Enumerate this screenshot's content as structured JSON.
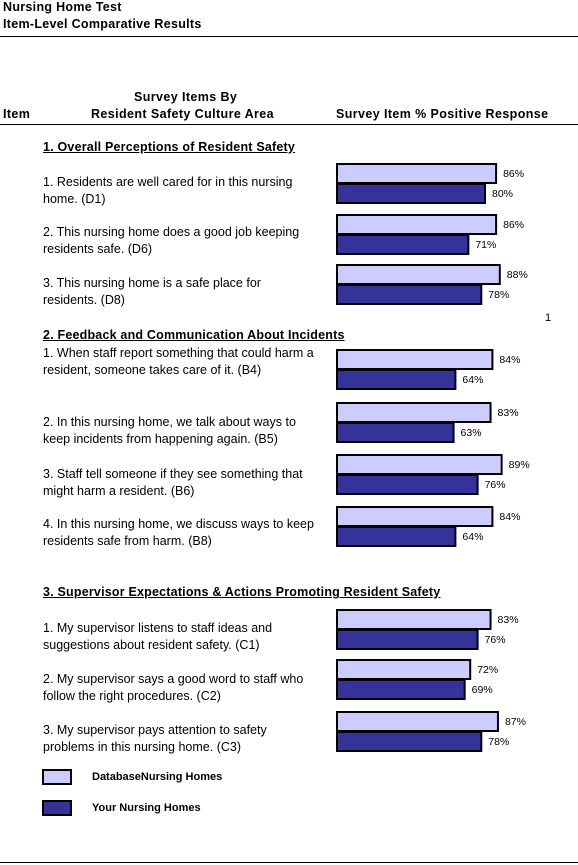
{
  "header": {
    "title": "Nursing Home Test",
    "subtitle": "Item-Level Comparative Results"
  },
  "columns": {
    "item": "Item",
    "area_line1": "Survey Items By",
    "area_line2": "Resident Safety Culture Area",
    "response": "Survey Item % Positive Response"
  },
  "page_number": "1",
  "legend": {
    "database": "DatabaseNursing Homes",
    "yours": "Your Nursing Homes"
  },
  "colors": {
    "database": "#ccccff",
    "yours": "#333399"
  },
  "sections": [
    {
      "title": "1.  Overall Perceptions of Resident Safety",
      "items": [
        {
          "text": "1. Residents are well cared for in this nursing home. (D1)",
          "database_label": "86%",
          "yours_label": "80%"
        },
        {
          "text": "2. This nursing home does a good job keeping residents safe. (D6)",
          "database_label": "86%",
          "yours_label": "71%"
        },
        {
          "text": "3. This nursing home is a safe place for residents. (D8)",
          "database_label": "88%",
          "yours_label": "78%"
        }
      ]
    },
    {
      "title": "2. Feedback and Communication About Incidents",
      "items": [
        {
          "text": "1. When staff report something that could harm a resident, someone takes care of it. (B4)",
          "database_label": "84%",
          "yours_label": "64%"
        },
        {
          "text": "2. In this nursing home, we talk about ways to keep incidents from happening again. (B5)",
          "database_label": "83%",
          "yours_label": "63%"
        },
        {
          "text": "3. Staff tell someone if they see something that might harm a resident. (B6)",
          "database_label": "89%",
          "yours_label": "76%"
        },
        {
          "text": "4. In this nursing home, we discuss ways to keep residents safe from harm. (B8)",
          "database_label": "84%",
          "yours_label": "64%"
        }
      ]
    },
    {
      "title": "3.  Supervisor Expectations & Actions Promoting Resident Safety",
      "items": [
        {
          "text": "1. My supervisor listens to staff ideas and suggestions about resident safety. (C1)",
          "database_label": "83%",
          "yours_label": "76%"
        },
        {
          "text": "2. My supervisor says a good word to staff who follow the right procedures. (C2)",
          "database_label": "72%",
          "yours_label": "69%"
        },
        {
          "text": "3. My supervisor pays attention to safety problems in this nursing home. (C3)",
          "database_label": "87%",
          "yours_label": "78%"
        }
      ]
    }
  ],
  "chart_data": {
    "type": "bar",
    "orientation": "horizontal",
    "categories": [
      "D1",
      "D6",
      "D8",
      "B4",
      "B5",
      "B6",
      "B8",
      "C1",
      "C2",
      "C3"
    ],
    "series": [
      {
        "name": "DatabaseNursing Homes",
        "values": [
          86,
          86,
          88,
          84,
          83,
          89,
          84,
          83,
          72,
          87
        ]
      },
      {
        "name": "Your Nursing Homes",
        "values": [
          80,
          71,
          78,
          64,
          63,
          76,
          64,
          76,
          69,
          78
        ]
      }
    ],
    "xlim": [
      0,
      100
    ],
    "grid": false
  }
}
